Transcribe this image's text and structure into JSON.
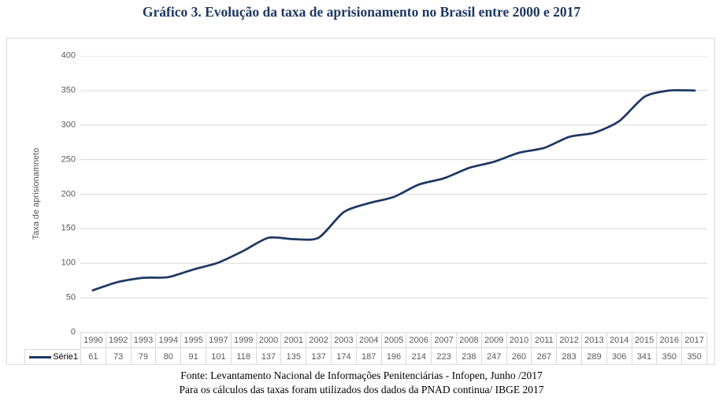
{
  "page": {
    "title": "Gráfico 3. Evolução da taxa de aprisionamento no Brasil entre 2000 e 2017",
    "footer_lines": [
      "Fonte: Levantamento Nacional de Informações Penitenciárias - Infopen, Junho /2017",
      "Para os cálculos das taxas foram utilizados dos dados da PNAD continua/ IBGE 2017"
    ]
  },
  "chart_data": {
    "type": "line",
    "title": "Gráfico 3. Evolução da taxa de aprisionamento no Brasil entre 2000 e 2017",
    "categories": [
      "1990",
      "1992",
      "1993",
      "1994",
      "1995",
      "1997",
      "1999",
      "2000",
      "2001",
      "2002",
      "2003",
      "2004",
      "2005",
      "2006",
      "2007",
      "2008",
      "2009",
      "2010",
      "2011",
      "2012",
      "2013",
      "2014",
      "2015",
      "2016",
      "2017"
    ],
    "series": [
      {
        "name": "Série1",
        "values": [
          61,
          73,
          79,
          80,
          91,
          101,
          118,
          137,
          135,
          137,
          174,
          187,
          196,
          214,
          223,
          238,
          247,
          260,
          267,
          283,
          289,
          306,
          341,
          350,
          350
        ]
      }
    ],
    "xlabel": "",
    "ylabel": "Taxa de aprisionamneto",
    "ylim": [
      0,
      400
    ],
    "yticks": [
      400,
      350,
      300,
      250,
      200,
      150,
      100,
      50,
      0
    ],
    "grid": true,
    "data_table_shown": true,
    "legend_position": "data-table-left",
    "colors": {
      "line": "#1f3864",
      "title_text": "#1f3864",
      "axis_text": "#595959",
      "gridline": "#d9d9d9",
      "frame_border": "#d9d9d9"
    }
  }
}
